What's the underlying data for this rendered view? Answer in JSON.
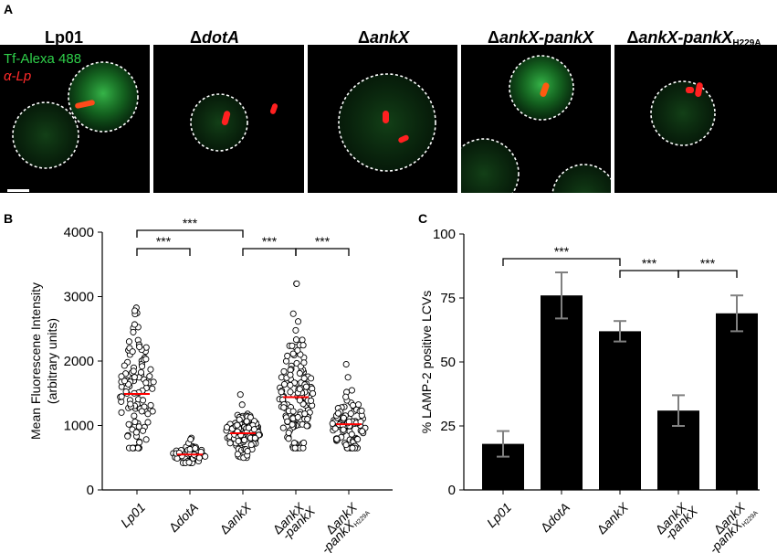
{
  "panel_a": {
    "letter": "A",
    "strains": [
      "Lp01",
      "ΔdotA",
      "ΔankX",
      "ΔankX-pankX",
      "ΔankX-pankXH229A"
    ],
    "strain_parts": [
      {
        "delta": "",
        "name": "Lp01",
        "italic": false,
        "suffix": ""
      },
      {
        "delta": "Δ",
        "name": "dotA",
        "italic": true,
        "suffix": ""
      },
      {
        "delta": "Δ",
        "name": "ankX",
        "italic": true,
        "suffix": ""
      },
      {
        "delta": "Δ",
        "name": "ankX-pankX",
        "italic": true,
        "suffix": ""
      },
      {
        "delta": "Δ",
        "name": "ankX-pankX",
        "italic": true,
        "suffix": "H229A"
      }
    ],
    "legend_green": "Tf-Alexa 488",
    "legend_red": "α-Lp",
    "colors": {
      "green": "#2fbf4a",
      "red": "#ff2020",
      "background": "#000000"
    }
  },
  "chart_data": [
    {
      "panel": "B",
      "type": "scatter",
      "ylabel": "Mean Fluorescene Intensity",
      "ylabel2": "(arbitrary units)",
      "categories": [
        "Lp01",
        "ΔdotA",
        "ΔankX",
        "ΔankX-pankX",
        "ΔankX-pankXH229A"
      ],
      "category_labels": [
        [
          "Lp01"
        ],
        [
          "ΔdotA"
        ],
        [
          "ΔankX"
        ],
        [
          "ΔankX",
          "-pankX"
        ],
        [
          "ΔankX",
          "-pankXH229A"
        ]
      ],
      "ylim": [
        0,
        4000
      ],
      "yticks": [
        0,
        1000,
        2000,
        3000,
        4000
      ],
      "means": [
        1490,
        550,
        880,
        1440,
        1020
      ],
      "spread": [
        [
          650,
          3400
        ],
        [
          420,
          820
        ],
        [
          500,
          1480
        ],
        [
          650,
          3200
        ],
        [
          650,
          1950
        ]
      ],
      "n_points": [
        110,
        60,
        110,
        140,
        100
      ],
      "mean_color": "#ff0000",
      "significance": [
        {
          "from": 0,
          "to": 1,
          "label": "***"
        },
        {
          "from": 0,
          "to": 2,
          "label": "***"
        },
        {
          "from": 2,
          "to": 3,
          "label": "***"
        },
        {
          "from": 3,
          "to": 4,
          "label": "***"
        }
      ]
    },
    {
      "panel": "C",
      "type": "bar",
      "ylabel": "% LAMP-2 positive LCVs",
      "categories": [
        "Lp01",
        "ΔdotA",
        "ΔankX",
        "ΔankX-pankX",
        "ΔankX-pankXH229A"
      ],
      "category_labels": [
        [
          "Lp01"
        ],
        [
          "ΔdotA"
        ],
        [
          "ΔankX"
        ],
        [
          "ΔankX",
          "-pankX"
        ],
        [
          "ΔankX",
          "-pankXH229A"
        ]
      ],
      "values": [
        18,
        76,
        62,
        31,
        69
      ],
      "errors": [
        5,
        9,
        4,
        6,
        7
      ],
      "ylim": [
        0,
        100
      ],
      "yticks": [
        0,
        25,
        50,
        75,
        100
      ],
      "bar_color": "#000000",
      "error_color": "#808080",
      "significance": [
        {
          "from": 0,
          "to": 2,
          "label": "***"
        },
        {
          "from": 2,
          "to": 3,
          "label": "***"
        },
        {
          "from": 3,
          "to": 4,
          "label": "***"
        }
      ]
    }
  ]
}
